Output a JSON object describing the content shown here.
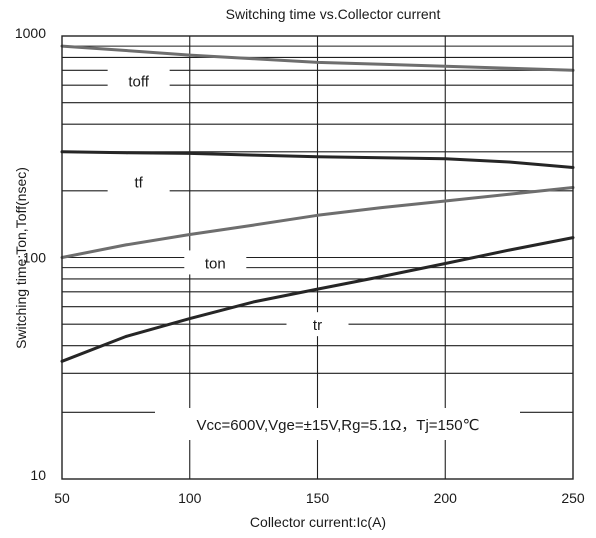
{
  "chart_data": {
    "type": "line",
    "title": "Switching time vs.Collector current",
    "xlabel": "Collector current:Ic(A)",
    "ylabel": "Switching time:Ton,Toff(nsec)",
    "xlim": [
      50,
      250
    ],
    "ylim": [
      10,
      1000
    ],
    "yscale": "log",
    "grid": true,
    "x_ticks": [
      50,
      100,
      150,
      200,
      250
    ],
    "x_tick_labels": [
      "50",
      "100",
      "150",
      "200",
      "250"
    ],
    "y_ticks": [
      10,
      100,
      1000
    ],
    "y_tick_labels": [
      "10",
      "100",
      "1000"
    ],
    "annotation": "Vcc=600V,Vge=±15V,Rg=5.1Ω，Tj=150℃",
    "series": [
      {
        "name": "toff",
        "color": "#6e6e6e",
        "x": [
          50,
          75,
          100,
          125,
          150,
          175,
          200,
          225,
          250
        ],
        "y": [
          900,
          860,
          820,
          790,
          760,
          745,
          730,
          715,
          700
        ],
        "label_pos": [
          80,
          630
        ]
      },
      {
        "name": "tf",
        "color": "#262626",
        "x": [
          50,
          75,
          100,
          125,
          150,
          175,
          200,
          225,
          250
        ],
        "y": [
          300,
          297,
          295,
          290,
          285,
          282,
          279,
          270,
          255
        ],
        "label_pos": [
          80,
          220
        ]
      },
      {
        "name": "ton",
        "color": "#6e6e6e",
        "x": [
          50,
          75,
          100,
          125,
          150,
          175,
          200,
          225,
          250
        ],
        "y": [
          100,
          114,
          127,
          140,
          155,
          168,
          180,
          193,
          207
        ],
        "label_pos": [
          110,
          95
        ]
      },
      {
        "name": "tr",
        "color": "#262626",
        "x": [
          50,
          75,
          100,
          125,
          150,
          175,
          200,
          225,
          250
        ],
        "y": [
          34,
          44,
          53,
          63,
          72,
          82,
          94,
          108,
          123
        ],
        "label_pos": [
          150,
          50
        ]
      }
    ]
  }
}
